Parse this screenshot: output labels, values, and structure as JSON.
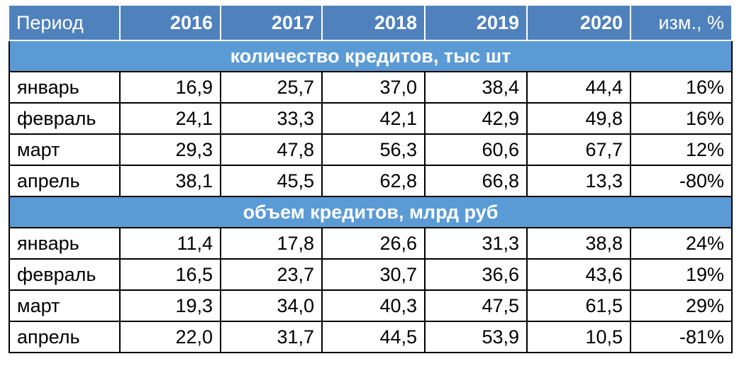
{
  "table": {
    "header": [
      "Период",
      "2016",
      "2017",
      "2018",
      "2019",
      "2020",
      "изм., %"
    ],
    "sections": [
      {
        "title": "количество кредитов, тыс шт",
        "rows": [
          [
            "январь",
            "16,9",
            "25,7",
            "37,0",
            "38,4",
            "44,4",
            "16%"
          ],
          [
            "февраль",
            "24,1",
            "33,3",
            "42,1",
            "42,9",
            "49,8",
            "16%"
          ],
          [
            "март",
            "29,3",
            "47,8",
            "56,3",
            "60,6",
            "67,7",
            "12%"
          ],
          [
            "апрель",
            "38,1",
            "45,5",
            "62,8",
            "66,8",
            "13,3",
            "-80%"
          ]
        ]
      },
      {
        "title": "объем кредитов, млрд руб",
        "rows": [
          [
            "январь",
            "11,4",
            "17,8",
            "26,6",
            "31,3",
            "38,8",
            "24%"
          ],
          [
            "февраль",
            "16,5",
            "23,7",
            "30,7",
            "36,6",
            "43,6",
            "19%"
          ],
          [
            "март",
            "19,3",
            "34,0",
            "40,3",
            "47,5",
            "61,5",
            "29%"
          ],
          [
            "апрель",
            "22,0",
            "31,7",
            "44,5",
            "53,9",
            "10,5",
            "-81%"
          ]
        ]
      }
    ]
  }
}
